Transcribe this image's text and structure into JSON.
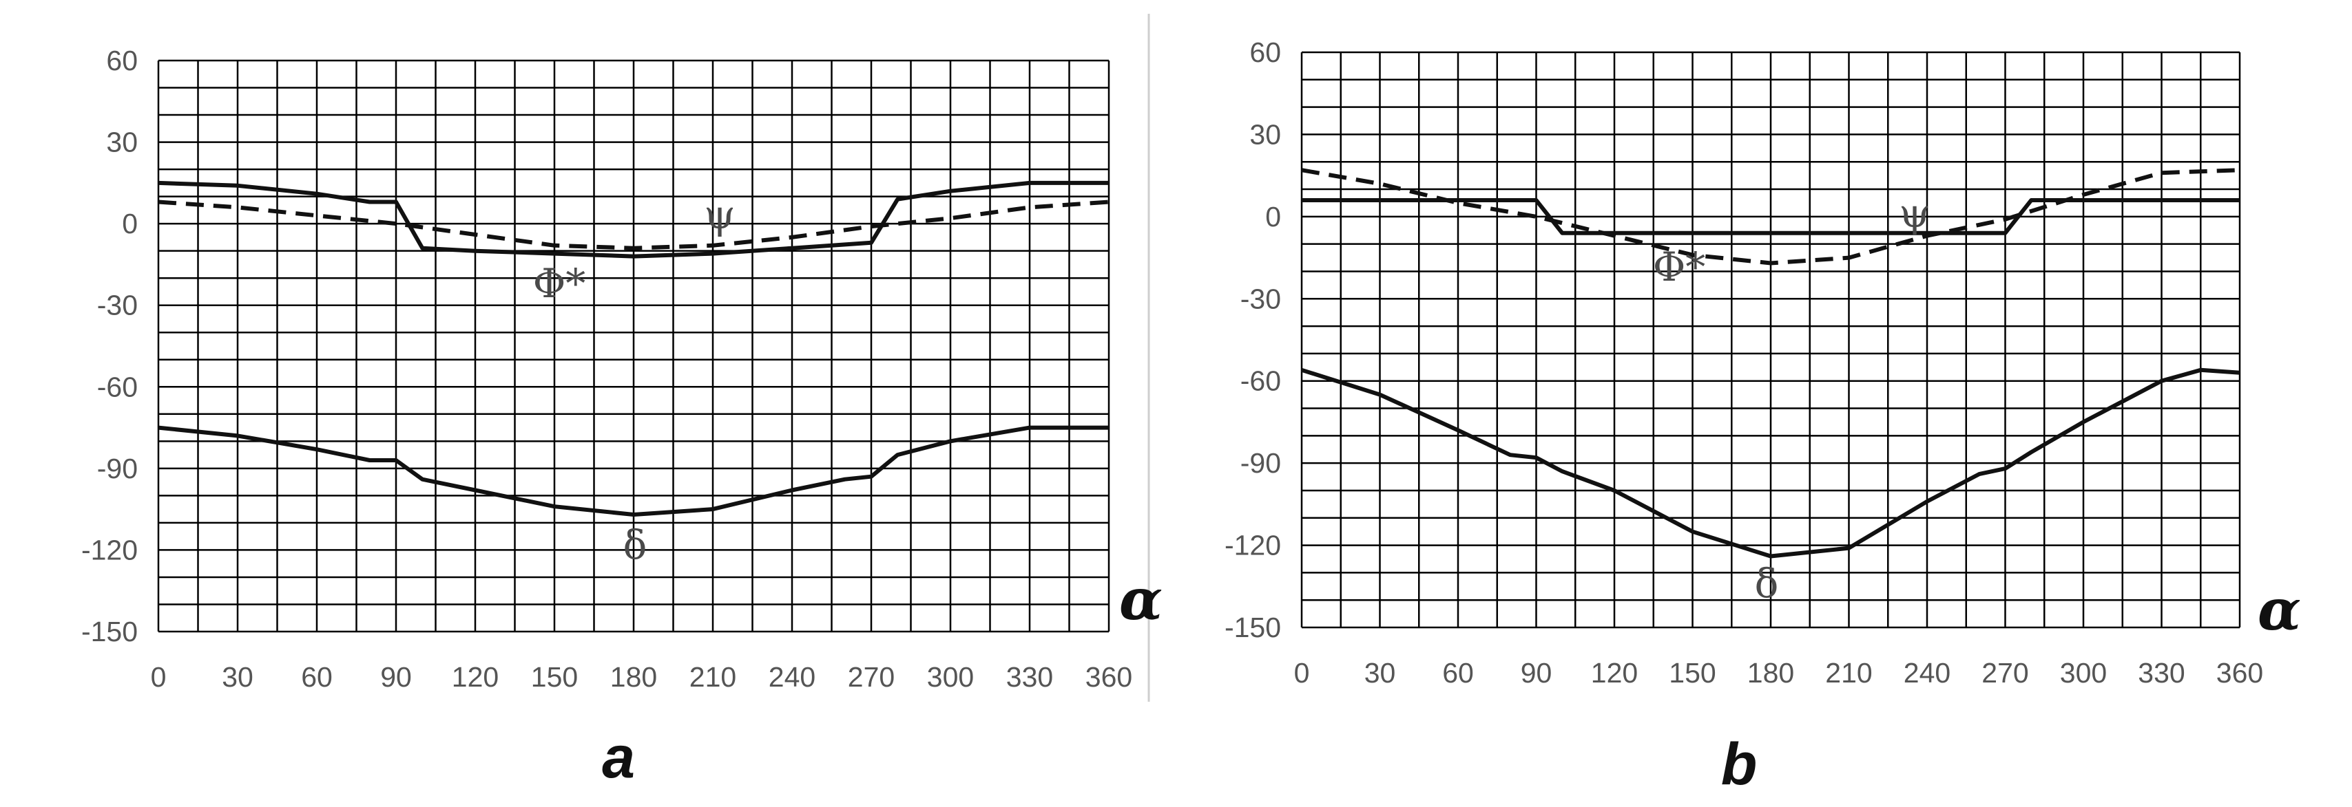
{
  "chart_data": [
    {
      "type": "line",
      "panel_label": "a",
      "axis_symbol": "α",
      "xlim": [
        0,
        360
      ],
      "ylim": [
        -150,
        60
      ],
      "x_ticks": [
        "0",
        "30",
        "60",
        "90",
        "120",
        "150",
        "180",
        "210",
        "240",
        "270",
        "300",
        "330",
        "360"
      ],
      "y_ticks": [
        "60",
        "30",
        "0",
        "-30",
        "-60",
        "-90",
        "-120",
        "-150"
      ],
      "grid": true,
      "minor_grid_y": 10,
      "series": [
        {
          "name": "ψ",
          "style": "solid",
          "x": [
            0,
            30,
            60,
            80,
            90,
            100,
            120,
            150,
            180,
            210,
            240,
            270,
            280,
            300,
            330,
            360
          ],
          "y": [
            15,
            14,
            11,
            8,
            8,
            -9,
            -10,
            -11,
            -12,
            -11,
            -9,
            -7,
            9,
            12,
            15,
            15
          ]
        },
        {
          "name": "Φ*",
          "style": "dashed",
          "x": [
            0,
            30,
            60,
            90,
            120,
            150,
            180,
            210,
            240,
            270,
            300,
            330,
            360
          ],
          "y": [
            8,
            6,
            3,
            0,
            -4,
            -8,
            -9,
            -8,
            -5,
            -1,
            2,
            6,
            8
          ]
        },
        {
          "name": "δ",
          "style": "solid",
          "x": [
            0,
            30,
            60,
            80,
            90,
            100,
            120,
            150,
            180,
            210,
            240,
            260,
            270,
            280,
            300,
            330,
            360
          ],
          "y": [
            -75,
            -78,
            -83,
            -87,
            -87,
            -94,
            -98,
            -104,
            -107,
            -105,
            -98,
            -94,
            -93,
            -85,
            -80,
            -75,
            -75
          ]
        }
      ]
    },
    {
      "type": "line",
      "panel_label": "b",
      "axis_symbol": "α",
      "xlim": [
        0,
        360
      ],
      "ylim": [
        -150,
        60
      ],
      "x_ticks": [
        "0",
        "30",
        "60",
        "90",
        "120",
        "150",
        "180",
        "210",
        "240",
        "270",
        "300",
        "330",
        "360"
      ],
      "y_ticks": [
        "60",
        "30",
        "0",
        "-30",
        "-60",
        "-90",
        "-120",
        "-150"
      ],
      "grid": true,
      "minor_grid_y": 10,
      "series": [
        {
          "name": "ψ",
          "style": "solid",
          "x": [
            0,
            90,
            100,
            270,
            280,
            360
          ],
          "y": [
            6,
            6,
            -6,
            -6,
            6,
            6
          ]
        },
        {
          "name": "Φ*",
          "style": "dashed",
          "x": [
            0,
            30,
            60,
            90,
            120,
            150,
            180,
            210,
            240,
            270,
            300,
            330,
            360
          ],
          "y": [
            17,
            12,
            5,
            0,
            -7,
            -14,
            -17,
            -15,
            -7,
            -1,
            8,
            16,
            17
          ]
        },
        {
          "name": "δ",
          "style": "solid",
          "x": [
            0,
            30,
            60,
            80,
            90,
            100,
            120,
            150,
            180,
            210,
            240,
            260,
            270,
            280,
            300,
            330,
            345,
            360
          ],
          "y": [
            -56,
            -65,
            -78,
            -87,
            -88,
            -93,
            -100,
            -115,
            -124,
            -121,
            -104,
            -94,
            -92,
            -86,
            -75,
            -60,
            -56,
            -57
          ]
        }
      ]
    }
  ]
}
